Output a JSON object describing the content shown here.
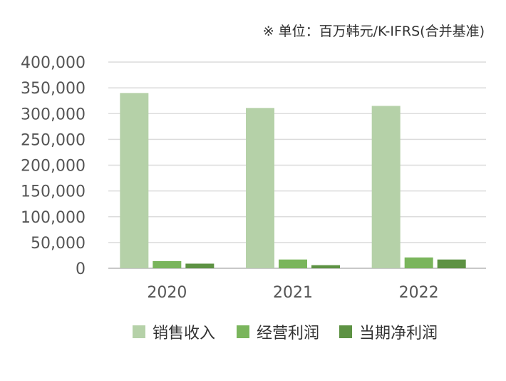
{
  "unit_note": "※ 单位：百万韩元/K-IFRS(合并基准)",
  "chart_data": {
    "type": "bar",
    "categories": [
      "2020",
      "2021",
      "2022"
    ],
    "series": [
      {
        "name": "销售收入",
        "values": [
          340000,
          311000,
          315000
        ],
        "color": "#b5d1a8"
      },
      {
        "name": "经营利润",
        "values": [
          14000,
          17000,
          21000
        ],
        "color": "#7ab55c"
      },
      {
        "name": "当期净利润",
        "values": [
          9000,
          6000,
          17000
        ],
        "color": "#5d9243"
      }
    ],
    "ylim": [
      0,
      400000
    ],
    "yticks": [
      0,
      50000,
      100000,
      150000,
      200000,
      250000,
      300000,
      350000,
      400000
    ],
    "ytick_labels": [
      "0",
      "50,000",
      "100,000",
      "150,000",
      "200,000",
      "250,000",
      "300,000",
      "350,000",
      "400,000"
    ],
    "grid": true,
    "legend_position": "bottom"
  }
}
